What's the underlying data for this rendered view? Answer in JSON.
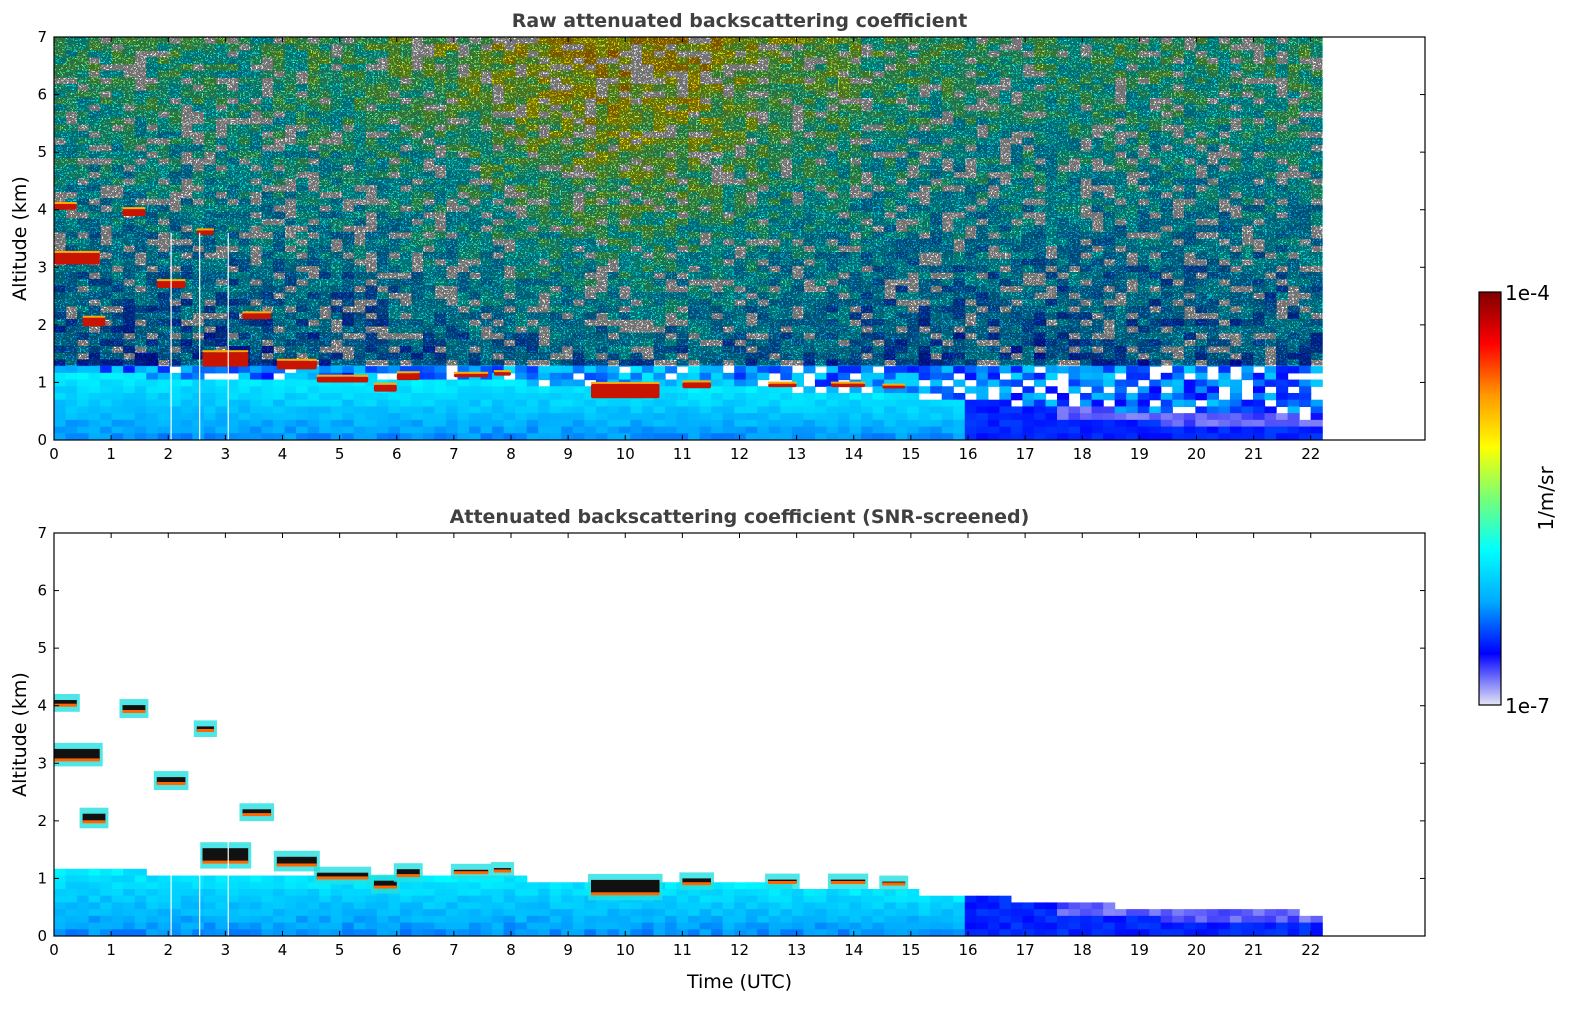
{
  "chart_data": [
    {
      "type": "heatmap",
      "title": "Raw attenuated backscattering coefficient",
      "xlabel": "",
      "ylabel": "Altitude (km)",
      "xlim": [
        0,
        24
      ],
      "ylim": [
        0,
        7
      ],
      "x_ticks": [
        0,
        1,
        2,
        3,
        4,
        5,
        6,
        7,
        8,
        9,
        10,
        11,
        12,
        13,
        14,
        15,
        16,
        17,
        18,
        19,
        20,
        21,
        22
      ],
      "y_ticks": [
        0,
        1,
        2,
        3,
        4,
        5,
        6,
        7
      ],
      "data_end_time": 22.2,
      "boundary_layer_top_km": [
        [
          0,
          1.15
        ],
        [
          2,
          1.1
        ],
        [
          4,
          1.05
        ],
        [
          6,
          1.0
        ],
        [
          8,
          1.0
        ],
        [
          10,
          0.95
        ],
        [
          12,
          0.9
        ],
        [
          14,
          0.85
        ],
        [
          16,
          0.7
        ],
        [
          18,
          0.55
        ],
        [
          20,
          0.45
        ],
        [
          22.2,
          0.4
        ]
      ],
      "cloud_segments": [
        {
          "t": [
            0.0,
            0.4
          ],
          "alt_km": 4.05,
          "thickness_km": 0.1
        },
        {
          "t": [
            1.2,
            1.6
          ],
          "alt_km": 3.95,
          "thickness_km": 0.12
        },
        {
          "t": [
            0.0,
            0.8
          ],
          "alt_km": 3.15,
          "thickness_km": 0.2
        },
        {
          "t": [
            1.8,
            2.3
          ],
          "alt_km": 2.7,
          "thickness_km": 0.12
        },
        {
          "t": [
            0.5,
            0.9
          ],
          "alt_km": 2.05,
          "thickness_km": 0.15
        },
        {
          "t": [
            2.5,
            2.8
          ],
          "alt_km": 3.6,
          "thickness_km": 0.08
        },
        {
          "t": [
            3.3,
            3.8
          ],
          "alt_km": 2.15,
          "thickness_km": 0.1
        },
        {
          "t": [
            2.6,
            3.4
          ],
          "alt_km": 1.4,
          "thickness_km": 0.25
        },
        {
          "t": [
            3.9,
            4.6
          ],
          "alt_km": 1.3,
          "thickness_km": 0.15
        },
        {
          "t": [
            4.6,
            5.5
          ],
          "alt_km": 1.05,
          "thickness_km": 0.1
        },
        {
          "t": [
            5.6,
            6.0
          ],
          "alt_km": 0.9,
          "thickness_km": 0.12
        },
        {
          "t": [
            6.0,
            6.4
          ],
          "alt_km": 1.1,
          "thickness_km": 0.12
        },
        {
          "t": [
            7.0,
            7.6
          ],
          "alt_km": 1.12,
          "thickness_km": 0.06
        },
        {
          "t": [
            7.7,
            8.0
          ],
          "alt_km": 1.15,
          "thickness_km": 0.06
        },
        {
          "t": [
            9.4,
            10.6
          ],
          "alt_km": 0.85,
          "thickness_km": 0.25
        },
        {
          "t": [
            11.0,
            11.5
          ],
          "alt_km": 0.95,
          "thickness_km": 0.1
        },
        {
          "t": [
            12.5,
            13.0
          ],
          "alt_km": 0.95,
          "thickness_km": 0.06
        },
        {
          "t": [
            13.6,
            14.2
          ],
          "alt_km": 0.95,
          "thickness_km": 0.06
        },
        {
          "t": [
            14.5,
            14.9
          ],
          "alt_km": 0.92,
          "thickness_km": 0.05
        }
      ],
      "data_gaps_utc": [
        2.05,
        2.55,
        3.05
      ],
      "colormap": "jet",
      "color_scale": "log"
    },
    {
      "type": "heatmap",
      "title": "Attenuated backscattering coefficient (SNR-screened)",
      "xlabel": "Time (UTC)",
      "ylabel": "Altitude (km)",
      "xlim": [
        0,
        24
      ],
      "ylim": [
        0,
        7
      ],
      "x_ticks": [
        0,
        1,
        2,
        3,
        4,
        5,
        6,
        7,
        8,
        9,
        10,
        11,
        12,
        13,
        14,
        15,
        16,
        17,
        18,
        19,
        20,
        21,
        22
      ],
      "y_ticks": [
        0,
        1,
        2,
        3,
        4,
        5,
        6,
        7
      ],
      "data_end_time": 22.2,
      "colormap": "jet",
      "color_scale": "log"
    }
  ],
  "colorbar": {
    "max_label": "1e-4",
    "min_label": "1e-7",
    "label": "1/m/sr"
  },
  "colors": {
    "stops": [
      "#e6e6f5",
      "#0000ff",
      "#00aaff",
      "#00ffff",
      "#77ff77",
      "#ffff00",
      "#ff9900",
      "#ff0000",
      "#7f0000"
    ]
  }
}
